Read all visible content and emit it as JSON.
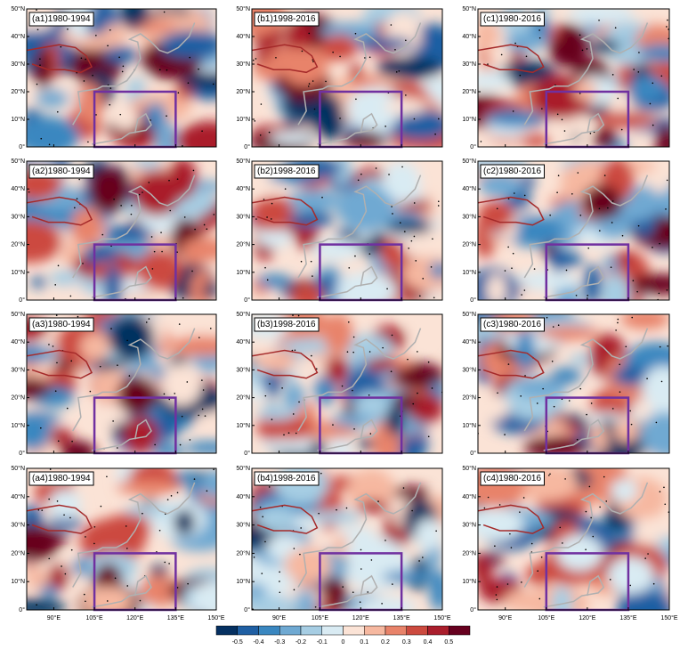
{
  "panels": [
    {
      "label": "(a1)1980-1994"
    },
    {
      "label": "(b1)1998-2016"
    },
    {
      "label": "(c1)1980-2016"
    },
    {
      "label": "(a2)1980-1994"
    },
    {
      "label": "(b2)1998-2016"
    },
    {
      "label": "(c2)1980-2016"
    },
    {
      "label": "(a3)1980-1994"
    },
    {
      "label": "(b3)1998-2016"
    },
    {
      "label": "(c3)1980-2016"
    },
    {
      "label": "(a4)1980-1994"
    },
    {
      "label": "(b4)1998-2016"
    },
    {
      "label": "(c4)1980-2016"
    }
  ],
  "lonlim": [
    80,
    150
  ],
  "latlim": [
    0,
    50
  ],
  "lon_ticks": [
    {
      "value": 90,
      "label": "90°E"
    },
    {
      "value": 105,
      "label": "105°E"
    },
    {
      "value": 120,
      "label": "120°E"
    },
    {
      "value": 135,
      "label": "135°E"
    },
    {
      "value": 150,
      "label": "150°E"
    }
  ],
  "lat_ticks": [
    {
      "value": 0,
      "label": "0°"
    },
    {
      "value": 10,
      "label": "10°N"
    },
    {
      "value": 20,
      "label": "20°N"
    },
    {
      "value": 30,
      "label": "30°N"
    },
    {
      "value": 40,
      "label": "40°N"
    },
    {
      "value": 50,
      "label": "50°N"
    }
  ],
  "box": {
    "lon": [
      105,
      135
    ],
    "lat": [
      0,
      20
    ],
    "color": "#7030a0"
  },
  "colorbar": {
    "levels": [
      -0.6,
      -0.5,
      -0.4,
      -0.3,
      -0.2,
      -0.1,
      0,
      0.1,
      0.2,
      0.3,
      0.4,
      0.5,
      0.6
    ],
    "colors": [
      "#053061",
      "#1f5fa3",
      "#3a87c0",
      "#6fa9d2",
      "#a6cde3",
      "#d9ebf3",
      "#fbe3d6",
      "#f6b8a0",
      "#e8836a",
      "#cc4a3f",
      "#aa1e2c",
      "#67001f"
    ]
  }
}
